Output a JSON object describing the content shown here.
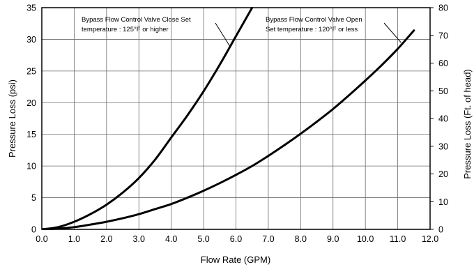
{
  "chart_data": {
    "type": "line",
    "xlabel": "Flow Rate (GPM)",
    "ylabel": "Pressure Loss (psi)",
    "y2label": "Pressure Loss (Ft. of head)",
    "xlim": [
      0,
      12
    ],
    "ylim": [
      0,
      35
    ],
    "y2lim": [
      0,
      80
    ],
    "grid": true,
    "x_ticks": [
      "0.0",
      "1.0",
      "2.0",
      "3.0",
      "4.0",
      "5.0",
      "6.0",
      "7.0",
      "8.0",
      "9.0",
      "10.0",
      "11.0",
      "12.0"
    ],
    "y_ticks": [
      "0",
      "5",
      "10",
      "15",
      "20",
      "25",
      "30",
      "35"
    ],
    "y2_ticks": [
      "0",
      "10",
      "20",
      "30",
      "40",
      "50",
      "60",
      "70",
      "80"
    ],
    "series": [
      {
        "x": [
          0,
          0.5,
          1.0,
          1.5,
          2.0,
          2.5,
          3.0,
          3.5,
          4.0,
          4.5,
          5.0,
          5.5,
          6.0,
          6.5
        ],
        "y": [
          0,
          0.35,
          1.2,
          2.4,
          3.9,
          5.8,
          8.1,
          11.0,
          14.5,
          18.0,
          21.8,
          26.0,
          30.5,
          35.0
        ]
      },
      {
        "x": [
          0,
          0.5,
          1.0,
          1.5,
          2.0,
          2.5,
          3.0,
          3.5,
          4.0,
          4.5,
          5.0,
          5.5,
          6.0,
          6.5,
          7.0,
          7.5,
          8.0,
          8.5,
          9.0,
          9.5,
          10.0,
          10.5,
          11.0,
          11.5
        ],
        "y": [
          0,
          0.12,
          0.35,
          0.75,
          1.2,
          1.75,
          2.4,
          3.2,
          4.0,
          5.0,
          6.1,
          7.3,
          8.6,
          10.0,
          11.6,
          13.3,
          15.1,
          17.0,
          19.0,
          21.2,
          23.5,
          25.9,
          28.5,
          31.4
        ]
      }
    ],
    "annotations": [
      {
        "lines": [
          "Bypass Flow Control Valve Close Set",
          "temperature : 125°F or higher"
        ],
        "points_to": [
          5.8,
          29.0
        ]
      },
      {
        "lines": [
          "Bypass Flow Control Valve Open",
          "Set temperature : 120°F or less"
        ],
        "points_to": [
          11.1,
          29.5
        ]
      }
    ]
  }
}
